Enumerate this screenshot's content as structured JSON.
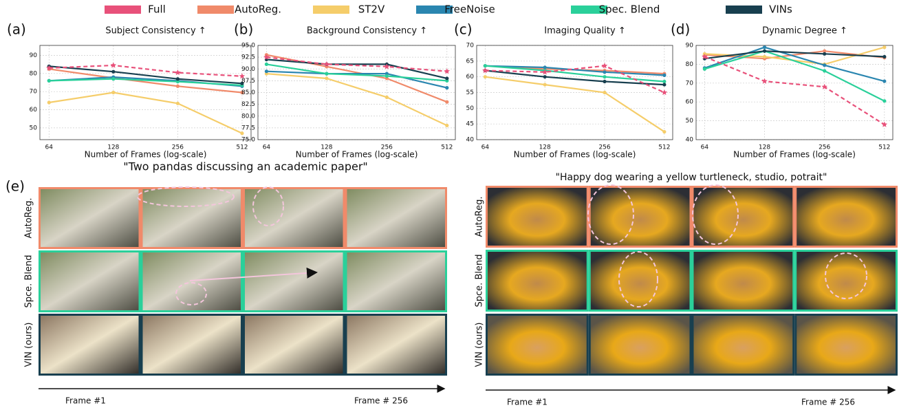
{
  "chart_data": [
    {
      "type": "line",
      "label": "(a)",
      "title": "Subject Consistency ↑",
      "xlabel": "Number of Frames (log-scale)",
      "log_x": true,
      "grid": true,
      "x": [
        64,
        128,
        256,
        512
      ],
      "xlim": [
        58,
        564
      ],
      "xticks": [
        64,
        128,
        256,
        512
      ],
      "ylim": [
        43.5,
        95.5
      ],
      "yticks": [
        50,
        60,
        70,
        80,
        90
      ],
      "series": [
        {
          "name": "Full",
          "color": "#e8517a",
          "dashed": true,
          "marker": "star",
          "values": [
            83,
            84.5,
            80.5,
            78.5
          ]
        },
        {
          "name": "AutoReg.",
          "color": "#f08a6a",
          "values": [
            82.5,
            77.5,
            73,
            69.5
          ]
        },
        {
          "name": "ST2V",
          "color": "#f5cd6a",
          "values": [
            64,
            69.5,
            63.5,
            47
          ]
        },
        {
          "name": "FreeNoise",
          "color": "#2a86b0",
          "values": [
            76,
            78,
            76,
            73
          ]
        },
        {
          "name": "Spec. Blend",
          "color": "#2ad09a",
          "values": [
            76,
            77,
            75.5,
            73.5
          ]
        },
        {
          "name": "VINs",
          "color": "#183f4f",
          "values": [
            84,
            81,
            77,
            74.5
          ]
        }
      ]
    },
    {
      "type": "line",
      "label": "(b)",
      "title": "Background Consistency ↑",
      "xlabel": "Number of Frames (log-scale)",
      "log_x": true,
      "grid": true,
      "x": [
        64,
        128,
        256,
        512
      ],
      "xlim": [
        58,
        564
      ],
      "xticks": [
        64,
        128,
        256,
        512
      ],
      "ylim": [
        75,
        95
      ],
      "yticks": [
        {
          "value": 75,
          "label": "75.0"
        },
        {
          "value": 77.5,
          "label": "77.5"
        },
        {
          "value": 80,
          "label": "80.0"
        },
        {
          "value": 82.5,
          "label": "82.5"
        },
        {
          "value": 85,
          "label": "85.0"
        },
        {
          "value": 87.5,
          "label": "87.5"
        },
        {
          "value": 90,
          "label": "90.0"
        },
        {
          "value": 92.5,
          "label": "92.5"
        },
        {
          "value": 95,
          "label": "95.0"
        }
      ],
      "series": [
        {
          "name": "Full",
          "color": "#e8517a",
          "dashed": true,
          "marker": "star",
          "values": [
            92.5,
            91,
            90.5,
            89.5
          ]
        },
        {
          "name": "AutoReg.",
          "color": "#f08a6a",
          "values": [
            93,
            90.5,
            88,
            83
          ]
        },
        {
          "name": "ST2V",
          "color": "#f5cd6a",
          "values": [
            89,
            88,
            84,
            78
          ]
        },
        {
          "name": "FreeNoise",
          "color": "#2a86b0",
          "values": [
            89.5,
            89,
            89,
            86
          ]
        },
        {
          "name": "Spec. Blend",
          "color": "#2ad09a",
          "values": [
            91,
            89,
            88.5,
            87.5
          ]
        },
        {
          "name": "VINs",
          "color": "#183f4f",
          "values": [
            92,
            91,
            91,
            88
          ]
        }
      ]
    },
    {
      "type": "line",
      "label": "(c)",
      "title": "Imaging Quality ↑",
      "xlabel": "Number of Frames (log-scale)",
      "log_x": true,
      "grid": true,
      "x": [
        64,
        128,
        256,
        512
      ],
      "xlim": [
        58,
        564
      ],
      "xticks": [
        64,
        128,
        256,
        512
      ],
      "ylim": [
        40,
        70
      ],
      "yticks": [
        40,
        45,
        50,
        55,
        60,
        65,
        70
      ],
      "series": [
        {
          "name": "Full",
          "color": "#e8517a",
          "dashed": true,
          "marker": "star",
          "values": [
            62,
            61.5,
            63.5,
            55
          ]
        },
        {
          "name": "AutoReg.",
          "color": "#f08a6a",
          "values": [
            63.5,
            62.5,
            62,
            61
          ]
        },
        {
          "name": "ST2V",
          "color": "#f5cd6a",
          "values": [
            60,
            57.5,
            55,
            42.5
          ]
        },
        {
          "name": "FreeNoise",
          "color": "#2a86b0",
          "values": [
            63.5,
            63,
            61.5,
            60.5
          ]
        },
        {
          "name": "Spec. Blend",
          "color": "#2ad09a",
          "values": [
            63.5,
            62,
            60,
            58.5
          ]
        },
        {
          "name": "VINs",
          "color": "#183f4f",
          "values": [
            62,
            60,
            58.5,
            57.5
          ]
        }
      ]
    },
    {
      "type": "line",
      "label": "(d)",
      "title": "Dynamic Degree ↑",
      "xlabel": "Number of Frames (log-scale)",
      "log_x": true,
      "grid": true,
      "x": [
        64,
        128,
        256,
        512
      ],
      "xlim": [
        58,
        564
      ],
      "xticks": [
        64,
        128,
        256,
        512
      ],
      "ylim": [
        40,
        90
      ],
      "yticks": [
        40,
        50,
        60,
        70,
        80,
        90
      ],
      "series": [
        {
          "name": "Full",
          "color": "#e8517a",
          "dashed": true,
          "marker": "star",
          "values": [
            84,
            71,
            68,
            48
          ]
        },
        {
          "name": "AutoReg.",
          "color": "#f08a6a",
          "values": [
            85,
            83,
            87,
            83.5
          ]
        },
        {
          "name": "ST2V",
          "color": "#f5cd6a",
          "values": [
            85.5,
            84,
            80,
            89
          ]
        },
        {
          "name": "FreeNoise",
          "color": "#2a86b0",
          "values": [
            78,
            89,
            79.5,
            71
          ]
        },
        {
          "name": "Spec. Blend",
          "color": "#2ad09a",
          "values": [
            77.5,
            87,
            76.5,
            60.5
          ]
        },
        {
          "name": "VINs",
          "color": "#183f4f",
          "values": [
            83,
            87,
            85.5,
            84
          ]
        }
      ]
    }
  ],
  "panel": {
    "label": "(e)",
    "groups": [
      {
        "prompt": "\"Two pandas discussing an academic paper\"",
        "rows": [
          "AutoReg.",
          "Spce. Blend",
          "VIN (ours)"
        ],
        "start": "Frame #1",
        "end": "Frame # 256"
      },
      {
        "prompt": "\"Happy dog wearing a yellow turtleneck, studio, potrait\"",
        "rows": [
          "AutoReg.",
          "Spce. Blend",
          "VIN (ours)"
        ],
        "start": "Frame #1",
        "end": "Frame # 256"
      }
    ]
  }
}
